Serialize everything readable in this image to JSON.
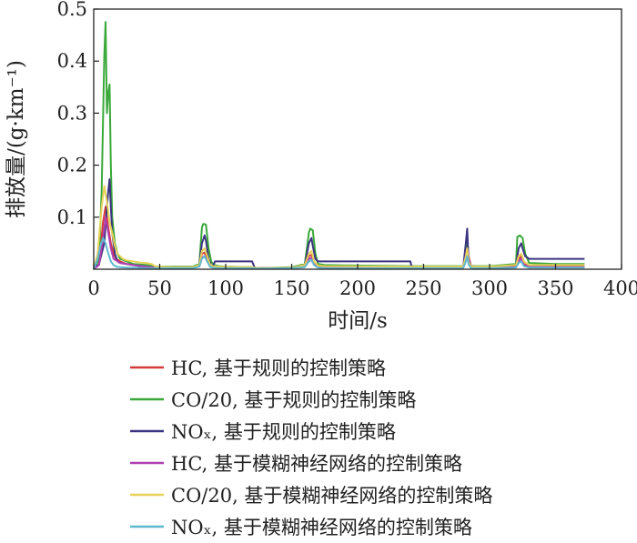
{
  "chart_data": {
    "type": "line",
    "xlabel": "时间/s",
    "ylabel": "排放量/(g·km⁻¹)",
    "xlim": [
      0,
      400
    ],
    "ylim": [
      0,
      0.5
    ],
    "xticks": [
      "0",
      "50",
      "100",
      "150",
      "200",
      "250",
      "300",
      "350",
      "400"
    ],
    "yticks": [
      "0.1",
      "0.2",
      "0.3",
      "0.4",
      "0.5"
    ],
    "grid": false,
    "legend_position": "bottom",
    "series": [
      {
        "name": "HC, 基于规则的控制策略",
        "color": "#d43a3a",
        "x": [
          0,
          4,
          7,
          9,
          11,
          13,
          15,
          17,
          20,
          25,
          30,
          40,
          47,
          60,
          75,
          80,
          82,
          84,
          86,
          88,
          90,
          95,
          100,
          115,
          120,
          125,
          150,
          160,
          163,
          165,
          167,
          170,
          175,
          200,
          240,
          280,
          282,
          283,
          284,
          286,
          300,
          320,
          322,
          324,
          326,
          330,
          350,
          372
        ],
        "y": [
          0,
          0.01,
          0.09,
          0.12,
          0.08,
          0.05,
          0.03,
          0.02,
          0.015,
          0.01,
          0.008,
          0.006,
          0.004,
          0.004,
          0.004,
          0.006,
          0.03,
          0.032,
          0.02,
          0.01,
          0.005,
          0.004,
          0.004,
          0.004,
          0.003,
          0.002,
          0.003,
          0.006,
          0.025,
          0.028,
          0.012,
          0.006,
          0.005,
          0.004,
          0.004,
          0.004,
          0.03,
          0.05,
          0.025,
          0.006,
          0.004,
          0.005,
          0.02,
          0.025,
          0.01,
          0.006,
          0.005,
          0.005
        ]
      },
      {
        "name": "CO/20, 基于规则的控制策略",
        "color": "#3aa83a",
        "x": [
          0,
          4,
          6,
          8,
          9,
          10,
          11,
          12,
          13,
          14,
          16,
          18,
          20,
          25,
          30,
          40,
          47,
          60,
          75,
          80,
          82,
          83,
          85,
          87,
          89,
          91,
          95,
          100,
          120,
          125,
          150,
          160,
          163,
          164,
          166,
          168,
          170,
          175,
          200,
          240,
          280,
          282,
          283,
          284,
          286,
          300,
          320,
          321,
          323,
          325,
          327,
          330,
          350,
          372
        ],
        "y": [
          0,
          0.02,
          0.15,
          0.41,
          0.475,
          0.3,
          0.34,
          0.355,
          0.2,
          0.1,
          0.05,
          0.03,
          0.02,
          0.015,
          0.01,
          0.008,
          0.005,
          0.005,
          0.005,
          0.01,
          0.08,
          0.087,
          0.086,
          0.04,
          0.015,
          0.008,
          0.006,
          0.005,
          0.004,
          0.002,
          0.004,
          0.01,
          0.07,
          0.078,
          0.075,
          0.03,
          0.01,
          0.008,
          0.007,
          0.006,
          0.006,
          0.02,
          0.05,
          0.02,
          0.006,
          0.006,
          0.01,
          0.062,
          0.065,
          0.06,
          0.03,
          0.012,
          0.01,
          0.01
        ]
      },
      {
        "name": "NOₓ, 基于规则的控制策略",
        "color": "#3b3480",
        "x": [
          0,
          4,
          8,
          10,
          11,
          12,
          13,
          14,
          16,
          18,
          20,
          25,
          30,
          35,
          40,
          47,
          50,
          60,
          75,
          80,
          82,
          84,
          85,
          87,
          89,
          90,
          92,
          95,
          120,
          122,
          125,
          150,
          160,
          163,
          165,
          166,
          168,
          170,
          175,
          240,
          241,
          245,
          280,
          282,
          283,
          284,
          286,
          300,
          320,
          322,
          324,
          325,
          327,
          330,
          350,
          372
        ],
        "y": [
          0,
          0.01,
          0.05,
          0.12,
          0.15,
          0.173,
          0.12,
          0.07,
          0.03,
          0.015,
          0.012,
          0.01,
          0.008,
          0.006,
          0.004,
          0.003,
          0.003,
          0.003,
          0.003,
          0.008,
          0.05,
          0.065,
          0.055,
          0.02,
          0.008,
          0.005,
          0.015,
          0.015,
          0.015,
          0.003,
          0.002,
          0.003,
          0.008,
          0.05,
          0.06,
          0.045,
          0.02,
          0.015,
          0.015,
          0.015,
          0.003,
          0.003,
          0.003,
          0.05,
          0.078,
          0.02,
          0.003,
          0.003,
          0.008,
          0.04,
          0.05,
          0.04,
          0.025,
          0.02,
          0.02,
          0.02
        ]
      },
      {
        "name": "HC, 基于模糊神经网络的控制策略",
        "color": "#b040b0",
        "x": [
          0,
          4,
          7,
          9,
          11,
          13,
          15,
          20,
          30,
          40,
          47,
          60,
          75,
          80,
          82,
          84,
          86,
          88,
          90,
          95,
          120,
          125,
          150,
          160,
          163,
          165,
          167,
          170,
          175,
          240,
          280,
          282,
          283,
          284,
          286,
          300,
          320,
          322,
          324,
          326,
          330,
          350,
          372
        ],
        "y": [
          0,
          0.008,
          0.06,
          0.1,
          0.07,
          0.04,
          0.02,
          0.012,
          0.008,
          0.005,
          0.003,
          0.003,
          0.003,
          0.005,
          0.022,
          0.025,
          0.015,
          0.008,
          0.004,
          0.003,
          0.003,
          0.002,
          0.002,
          0.005,
          0.02,
          0.022,
          0.01,
          0.005,
          0.004,
          0.003,
          0.003,
          0.025,
          0.04,
          0.02,
          0.005,
          0.003,
          0.004,
          0.016,
          0.02,
          0.008,
          0.005,
          0.004,
          0.004
        ]
      },
      {
        "name": "CO/20, 基于模糊神经网络的控制策略",
        "color": "#e8d25a",
        "x": [
          0,
          3,
          6,
          8,
          10,
          12,
          14,
          16,
          18,
          20,
          22,
          25,
          30,
          35,
          40,
          44,
          47,
          60,
          75,
          80,
          82,
          84,
          86,
          88,
          90,
          95,
          120,
          125,
          150,
          160,
          163,
          165,
          167,
          170,
          175,
          240,
          280,
          282,
          283,
          284,
          286,
          300,
          320,
          322,
          324,
          326,
          330,
          350,
          372
        ],
        "y": [
          0,
          0.03,
          0.12,
          0.16,
          0.13,
          0.09,
          0.07,
          0.045,
          0.03,
          0.025,
          0.02,
          0.017,
          0.015,
          0.013,
          0.012,
          0.01,
          0.005,
          0.004,
          0.004,
          0.008,
          0.035,
          0.04,
          0.025,
          0.01,
          0.006,
          0.005,
          0.004,
          0.002,
          0.003,
          0.008,
          0.03,
          0.035,
          0.015,
          0.007,
          0.006,
          0.005,
          0.005,
          0.025,
          0.04,
          0.015,
          0.005,
          0.005,
          0.008,
          0.025,
          0.03,
          0.015,
          0.008,
          0.008,
          0.008
        ]
      },
      {
        "name": "NOₓ, 基于模糊神经网络的控制策略",
        "color": "#5fb8d0",
        "x": [
          0,
          3,
          5,
          7,
          9,
          11,
          13,
          15,
          17,
          20,
          25,
          30,
          40,
          47,
          60,
          75,
          80,
          82,
          84,
          86,
          88,
          90,
          95,
          120,
          125,
          150,
          160,
          163,
          165,
          167,
          170,
          175,
          240,
          280,
          282,
          283,
          284,
          286,
          300,
          320,
          322,
          324,
          326,
          330,
          350,
          372
        ],
        "y": [
          0,
          0.02,
          0.045,
          0.06,
          0.05,
          0.03,
          0.015,
          0.008,
          0.005,
          0.004,
          0.003,
          0.003,
          0.002,
          0.002,
          0.002,
          0.002,
          0.005,
          0.02,
          0.025,
          0.015,
          0.005,
          0.003,
          0.002,
          0.002,
          0.001,
          0.002,
          0.004,
          0.015,
          0.018,
          0.008,
          0.003,
          0.002,
          0.002,
          0.002,
          0.015,
          0.025,
          0.01,
          0.002,
          0.002,
          0.003,
          0.012,
          0.015,
          0.006,
          0.003,
          0.003,
          0.003
        ]
      }
    ]
  }
}
